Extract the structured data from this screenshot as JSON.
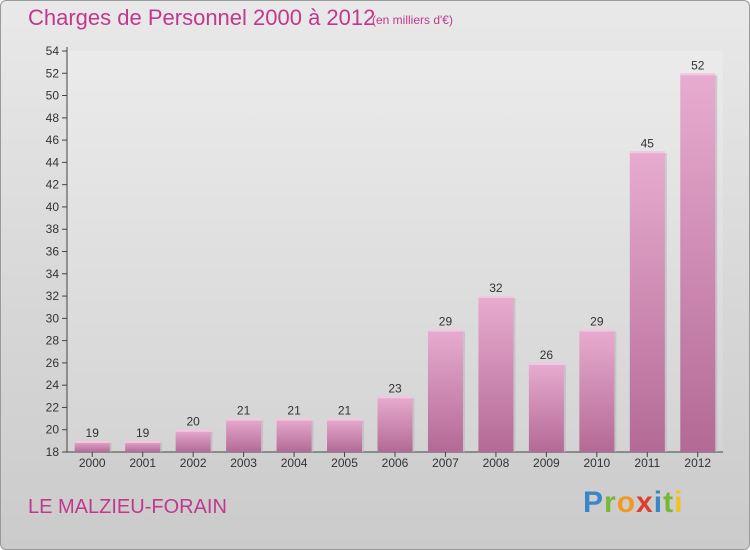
{
  "header": {
    "title": "Charges de Personnel 2000 à 2012",
    "subtitle": "(en milliers d'€)"
  },
  "footer": {
    "commune": "LE MALZIEU-FORAIN",
    "logo": "Proxiti"
  },
  "colors": {
    "accent": "#c0398d",
    "bar_light": "#e5a8cc",
    "bar_dark": "#b56a96"
  },
  "chart_data": {
    "type": "bar",
    "title": "Charges de Personnel 2000 à 2012",
    "subtitle": "(en milliers d'€)",
    "categories": [
      "2000",
      "2001",
      "2002",
      "2003",
      "2004",
      "2005",
      "2006",
      "2007",
      "2008",
      "2009",
      "2010",
      "2011",
      "2012"
    ],
    "values": [
      19,
      19,
      20,
      21,
      21,
      21,
      23,
      29,
      32,
      26,
      29,
      45,
      52
    ],
    "ylim": [
      18,
      54
    ],
    "ytick_step": 2,
    "grid": false,
    "legend": "none"
  }
}
